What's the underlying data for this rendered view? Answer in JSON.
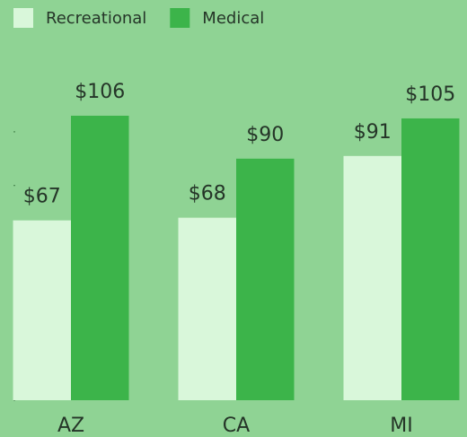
{
  "chart_data": {
    "type": "bar",
    "categories": [
      "AZ",
      "CA",
      "MI"
    ],
    "series": [
      {
        "name": "Recreational",
        "color": "#d9f7da",
        "values": [
          67,
          68,
          91
        ],
        "value_labels": [
          "$67",
          "$68",
          "$91"
        ]
      },
      {
        "name": "Medical",
        "color": "#3cb44a",
        "values": [
          106,
          90,
          105
        ],
        "value_labels": [
          "$106",
          "$90",
          "$105"
        ]
      }
    ],
    "ylim": [
      0,
      110
    ],
    "yticks": [
      0,
      20,
      40,
      60,
      80,
      100
    ],
    "legend": "top-left"
  }
}
